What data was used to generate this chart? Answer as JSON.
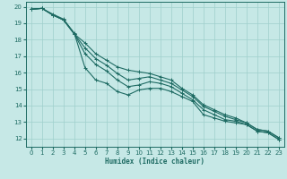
{
  "xlabel": "Humidex (Indice chaleur)",
  "xlim": [
    -0.5,
    23.5
  ],
  "ylim": [
    11.5,
    20.3
  ],
  "yticks": [
    12,
    13,
    14,
    15,
    16,
    17,
    18,
    19,
    20
  ],
  "xticks": [
    0,
    1,
    2,
    3,
    4,
    5,
    6,
    7,
    8,
    9,
    10,
    11,
    12,
    13,
    14,
    15,
    16,
    17,
    18,
    19,
    20,
    21,
    22,
    23
  ],
  "bg_color": "#c6e8e6",
  "grid_color": "#9fcfcc",
  "line_color": "#1e6b63",
  "line1_x": [
    0,
    1,
    2,
    3,
    4,
    5,
    6,
    7,
    8,
    9,
    10,
    11,
    12,
    13,
    14,
    15,
    16,
    17,
    18,
    19,
    20,
    21,
    22,
    23
  ],
  "line1_y": [
    19.85,
    19.9,
    19.55,
    19.25,
    18.4,
    16.3,
    15.55,
    15.35,
    14.85,
    14.65,
    14.95,
    15.05,
    15.05,
    14.85,
    14.55,
    14.25,
    13.45,
    13.25,
    13.05,
    12.95,
    12.85,
    12.45,
    12.35,
    11.95
  ],
  "line2_x": [
    0,
    1,
    2,
    3,
    4,
    5,
    6,
    7,
    8,
    9,
    10,
    11,
    12,
    13,
    14,
    15,
    16,
    17,
    18,
    19,
    20,
    21,
    22,
    23
  ],
  "line2_y": [
    19.85,
    19.9,
    19.5,
    19.2,
    18.35,
    17.15,
    16.5,
    16.1,
    15.55,
    15.15,
    15.25,
    15.45,
    15.35,
    15.15,
    14.75,
    14.35,
    13.75,
    13.45,
    13.15,
    13.05,
    12.85,
    12.45,
    12.35,
    11.95
  ],
  "line3_x": [
    0,
    1,
    2,
    3,
    4,
    5,
    6,
    7,
    8,
    9,
    10,
    11,
    12,
    13,
    14,
    15,
    16,
    17,
    18,
    19,
    20,
    21,
    22,
    23
  ],
  "line3_y": [
    19.85,
    19.9,
    19.5,
    19.2,
    18.35,
    17.5,
    16.85,
    16.45,
    15.95,
    15.55,
    15.65,
    15.75,
    15.55,
    15.35,
    14.95,
    14.55,
    13.95,
    13.65,
    13.35,
    13.15,
    12.95,
    12.55,
    12.45,
    12.05
  ],
  "line4_x": [
    0,
    1,
    2,
    3,
    4,
    5,
    6,
    7,
    8,
    9,
    10,
    11,
    12,
    13,
    14,
    15,
    16,
    17,
    18,
    19,
    20,
    21,
    22,
    23
  ],
  "line4_y": [
    19.85,
    19.9,
    19.5,
    19.2,
    18.35,
    17.8,
    17.15,
    16.75,
    16.35,
    16.15,
    16.05,
    15.95,
    15.75,
    15.55,
    15.05,
    14.65,
    14.05,
    13.75,
    13.45,
    13.25,
    12.95,
    12.55,
    12.45,
    12.05
  ]
}
